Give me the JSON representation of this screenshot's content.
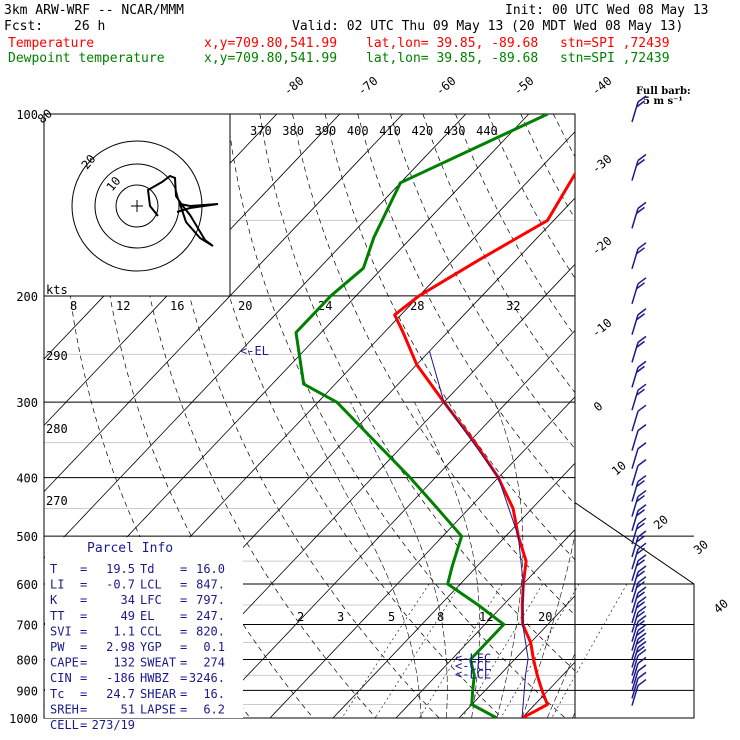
{
  "header": {
    "model": "3km ARW-WRF -- NCAR/MMM",
    "init": "Init: 00 UTC Wed 08 May 13",
    "fcst_label": "Fcst:",
    "fcst_hours": "26 h",
    "valid": "Valid: 02 UTC Thu 09 May 13 (20 MDT Wed 08 May 13)",
    "temp_legend": "Temperature",
    "dew_legend": "Dewpoint temperature",
    "temp_xy": "x,y=709.80,541.99",
    "dew_xy": "x,y=709.80,541.99",
    "temp_latlon": "lat,lon= 39.85, -89.68",
    "dew_latlon": "lat,lon= 39.85, -89.68",
    "temp_stn": "stn=SPI ,72439",
    "dew_stn": "stn=SPI ,72439",
    "wind_note_1": "Full barb:",
    "wind_note_2": "5 m s⁻¹"
  },
  "colors": {
    "temperature": "#ff0000",
    "dewpoint": "#008000",
    "parcel": "#1a1a8c",
    "hodo": "#000000"
  },
  "chart_data": {
    "type": "line",
    "title": "Skew-T log-P sounding",
    "ylabel": "Pressure (hPa)",
    "xlabel": "Temperature (C)",
    "ylim": [
      1000,
      100
    ],
    "pressure_labels": [
      "100",
      "200",
      "300",
      "400",
      "500",
      "600",
      "700",
      "800",
      "900",
      "1000"
    ],
    "isotherm_labels": [
      "-80",
      "-70",
      "-60",
      "-50",
      "-40",
      "-30",
      "-20",
      "-10",
      "0",
      "10",
      "20",
      "30",
      "40"
    ],
    "theta_labels": [
      "370",
      "380",
      "390",
      "400",
      "410",
      "420",
      "430",
      "440"
    ],
    "theta_left_labels": [
      "290",
      "280",
      "270"
    ],
    "mixing_ratio_labels": [
      "2",
      "3",
      "5",
      "8",
      "12",
      "20"
    ],
    "hodograph": {
      "speed_unit": "kts",
      "ring_labels": [
        "10",
        "20"
      ],
      "speed_scale_label": "kts",
      "scale_ticks": [
        "8",
        "12",
        "16",
        "20",
        "24",
        "28",
        "32"
      ]
    },
    "series": [
      {
        "name": "Temperature",
        "color": "#ff0000",
        "points": [
          {
            "p": 100,
            "t": -57
          },
          {
            "p": 150,
            "t": -51
          },
          {
            "p": 175,
            "t": -56
          },
          {
            "p": 200,
            "t": -60
          },
          {
            "p": 215,
            "t": -61
          },
          {
            "p": 230,
            "t": -57
          },
          {
            "p": 260,
            "t": -50
          },
          {
            "p": 300,
            "t": -40
          },
          {
            "p": 350,
            "t": -29
          },
          {
            "p": 400,
            "t": -20
          },
          {
            "p": 450,
            "t": -13
          },
          {
            "p": 500,
            "t": -8
          },
          {
            "p": 550,
            "t": -3
          },
          {
            "p": 600,
            "t": 0
          },
          {
            "p": 650,
            "t": 3
          },
          {
            "p": 700,
            "t": 6
          },
          {
            "p": 750,
            "t": 10
          },
          {
            "p": 800,
            "t": 13
          },
          {
            "p": 850,
            "t": 16
          },
          {
            "p": 900,
            "t": 19
          },
          {
            "p": 950,
            "t": 22
          },
          {
            "p": 975,
            "t": 21
          },
          {
            "p": 1000,
            "t": 20
          }
        ]
      },
      {
        "name": "Dewpoint temperature",
        "color": "#008000",
        "points": [
          {
            "p": 100,
            "t": -67
          },
          {
            "p": 130,
            "t": -80
          },
          {
            "p": 160,
            "t": -76
          },
          {
            "p": 180,
            "t": -73
          },
          {
            "p": 200,
            "t": -74
          },
          {
            "p": 230,
            "t": -74
          },
          {
            "p": 280,
            "t": -65
          },
          {
            "p": 300,
            "t": -57
          },
          {
            "p": 340,
            "t": -47
          },
          {
            "p": 400,
            "t": -34
          },
          {
            "p": 450,
            "t": -25
          },
          {
            "p": 500,
            "t": -17
          },
          {
            "p": 560,
            "t": -14
          },
          {
            "p": 600,
            "t": -12
          },
          {
            "p": 650,
            "t": -4
          },
          {
            "p": 700,
            "t": 3
          },
          {
            "p": 750,
            "t": 3
          },
          {
            "p": 800,
            "t": 3
          },
          {
            "p": 850,
            "t": 6
          },
          {
            "p": 900,
            "t": 8
          },
          {
            "p": 950,
            "t": 10
          },
          {
            "p": 1000,
            "t": 16
          }
        ]
      }
    ],
    "annotations": [
      {
        "text": "<-EL",
        "p": 247
      },
      {
        "text": "<-LFC",
        "p": 797
      },
      {
        "text": "<-CCL",
        "p": 820
      },
      {
        "text": "<-LCL",
        "p": 847
      }
    ],
    "winds": [
      {
        "p": 100,
        "barbs": 2
      },
      {
        "p": 125,
        "barbs": 2
      },
      {
        "p": 150,
        "barbs": 2
      },
      {
        "p": 175,
        "barbs": 2
      },
      {
        "p": 200,
        "barbs": 2
      },
      {
        "p": 225,
        "barbs": 2
      },
      {
        "p": 250,
        "barbs": 2
      },
      {
        "p": 275,
        "barbs": 2
      },
      {
        "p": 300,
        "barbs": 2
      },
      {
        "p": 325,
        "barbs": 1
      },
      {
        "p": 350,
        "barbs": 1
      },
      {
        "p": 375,
        "barbs": 1
      },
      {
        "p": 400,
        "barbs": 1
      },
      {
        "p": 425,
        "barbs": 2
      },
      {
        "p": 450,
        "barbs": 2
      },
      {
        "p": 475,
        "barbs": 2
      },
      {
        "p": 500,
        "barbs": 2
      },
      {
        "p": 525,
        "barbs": 2
      },
      {
        "p": 550,
        "barbs": 2
      },
      {
        "p": 575,
        "barbs": 2
      },
      {
        "p": 600,
        "barbs": 2
      },
      {
        "p": 625,
        "barbs": 2
      },
      {
        "p": 650,
        "barbs": 2
      },
      {
        "p": 675,
        "barbs": 2
      },
      {
        "p": 700,
        "barbs": 2
      },
      {
        "p": 725,
        "barbs": 2
      },
      {
        "p": 750,
        "barbs": 2
      },
      {
        "p": 775,
        "barbs": 2
      },
      {
        "p": 800,
        "barbs": 2
      },
      {
        "p": 825,
        "barbs": 1
      },
      {
        "p": 850,
        "barbs": 1
      },
      {
        "p": 875,
        "barbs": 1
      },
      {
        "p": 900,
        "barbs": 1
      },
      {
        "p": 925,
        "barbs": 1
      }
    ]
  },
  "parcel_info": {
    "title": "Parcel Info",
    "rows": [
      [
        "T",
        "=",
        "19.5",
        "Td",
        "=",
        "16.0"
      ],
      [
        "LI",
        "=",
        "-0.7",
        "LCL",
        "=",
        "847."
      ],
      [
        "K",
        "=",
        "34",
        "LFC",
        "=",
        "797."
      ],
      [
        "TT",
        "=",
        "49",
        "EL",
        "=",
        "247."
      ],
      [
        "SVI",
        "=",
        "1.1",
        "CCL",
        "=",
        "820."
      ],
      [
        "PW",
        "=",
        "2.98",
        "YGP",
        "=",
        "0.1"
      ],
      [
        "CAPE",
        "=",
        "132",
        "SWEAT",
        "=",
        "274"
      ],
      [
        "CIN",
        "=",
        "-186",
        "HWBZ",
        "=",
        "3246."
      ],
      [
        "Tc",
        "=",
        "24.7",
        "SHEAR",
        "=",
        "16."
      ],
      [
        "SREH",
        "=",
        "51",
        "LAPSE",
        "=",
        "6.2"
      ],
      [
        "CELL",
        "=",
        "273/19",
        "",
        "",
        ""
      ]
    ]
  }
}
